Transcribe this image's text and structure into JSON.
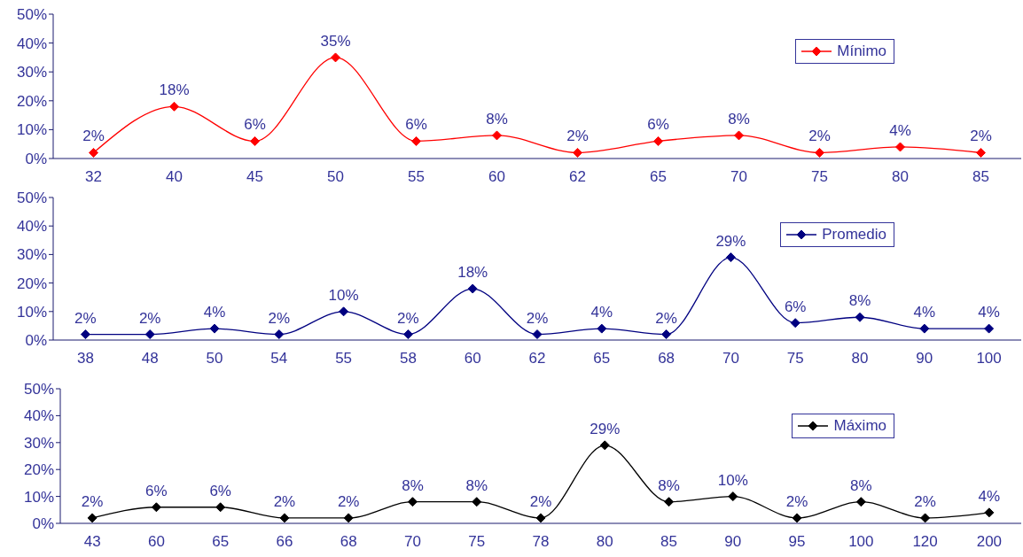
{
  "chart_data": [
    {
      "type": "line",
      "categories": [
        "32",
        "40",
        "45",
        "50",
        "55",
        "60",
        "62",
        "65",
        "70",
        "75",
        "80",
        "85"
      ],
      "series": [
        {
          "name": "Mínimo",
          "color": "#ff0000",
          "values": [
            2,
            18,
            6,
            35,
            6,
            8,
            2,
            6,
            8,
            2,
            4,
            2
          ],
          "value_labels": [
            "2%",
            "18%",
            "6%",
            "35%",
            "6%",
            "8%",
            "2%",
            "6%",
            "8%",
            "2%",
            "4%",
            "2%"
          ]
        }
      ],
      "ylim": [
        0,
        50
      ],
      "yticks": [
        {
          "value": 0,
          "label": "0%"
        },
        {
          "value": 10,
          "label": "10%"
        },
        {
          "value": 20,
          "label": "20%"
        },
        {
          "value": 30,
          "label": "30%"
        },
        {
          "value": 40,
          "label": "40%"
        },
        {
          "value": 50,
          "label": "50%"
        }
      ],
      "legend": "top right",
      "marker": "diamond",
      "grid": false
    },
    {
      "type": "line",
      "categories": [
        "38",
        "48",
        "50",
        "54",
        "55",
        "58",
        "60",
        "62",
        "65",
        "68",
        "70",
        "75",
        "80",
        "90",
        "100"
      ],
      "series": [
        {
          "name": "Promedio",
          "color": "#000080",
          "values": [
            2,
            2,
            4,
            2,
            10,
            2,
            18,
            2,
            4,
            2,
            29,
            6,
            8,
            4,
            4
          ],
          "value_labels": [
            "2%",
            "2%",
            "4%",
            "2%",
            "10%",
            "2%",
            "18%",
            "2%",
            "4%",
            "2%",
            "29%",
            "6%",
            "8%",
            "4%",
            "4%"
          ]
        }
      ],
      "ylim": [
        0,
        50
      ],
      "yticks": [
        {
          "value": 0,
          "label": "0%"
        },
        {
          "value": 10,
          "label": "10%"
        },
        {
          "value": 20,
          "label": "20%"
        },
        {
          "value": 30,
          "label": "30%"
        },
        {
          "value": 40,
          "label": "40%"
        },
        {
          "value": 50,
          "label": "50%"
        }
      ],
      "legend": "top right",
      "marker": "diamond",
      "grid": false
    },
    {
      "type": "line",
      "categories": [
        "43",
        "60",
        "65",
        "66",
        "68",
        "70",
        "75",
        "78",
        "80",
        "85",
        "90",
        "95",
        "100",
        "120",
        "200"
      ],
      "series": [
        {
          "name": "Máximo",
          "color": "#000000",
          "values": [
            2,
            6,
            6,
            2,
            2,
            8,
            8,
            2,
            29,
            8,
            10,
            2,
            8,
            2,
            4
          ],
          "value_labels": [
            "2%",
            "6%",
            "6%",
            "2%",
            "2%",
            "8%",
            "8%",
            "2%",
            "29%",
            "8%",
            "10%",
            "2%",
            "8%",
            "2%",
            "4%"
          ]
        }
      ],
      "ylim": [
        0,
        50
      ],
      "yticks": [
        {
          "value": 0,
          "label": "0%"
        },
        {
          "value": 10,
          "label": "10%"
        },
        {
          "value": 20,
          "label": "20%"
        },
        {
          "value": 30,
          "label": "30%"
        },
        {
          "value": 40,
          "label": "40%"
        },
        {
          "value": 50,
          "label": "50%"
        }
      ],
      "legend": "top right",
      "marker": "diamond",
      "grid": false
    }
  ]
}
